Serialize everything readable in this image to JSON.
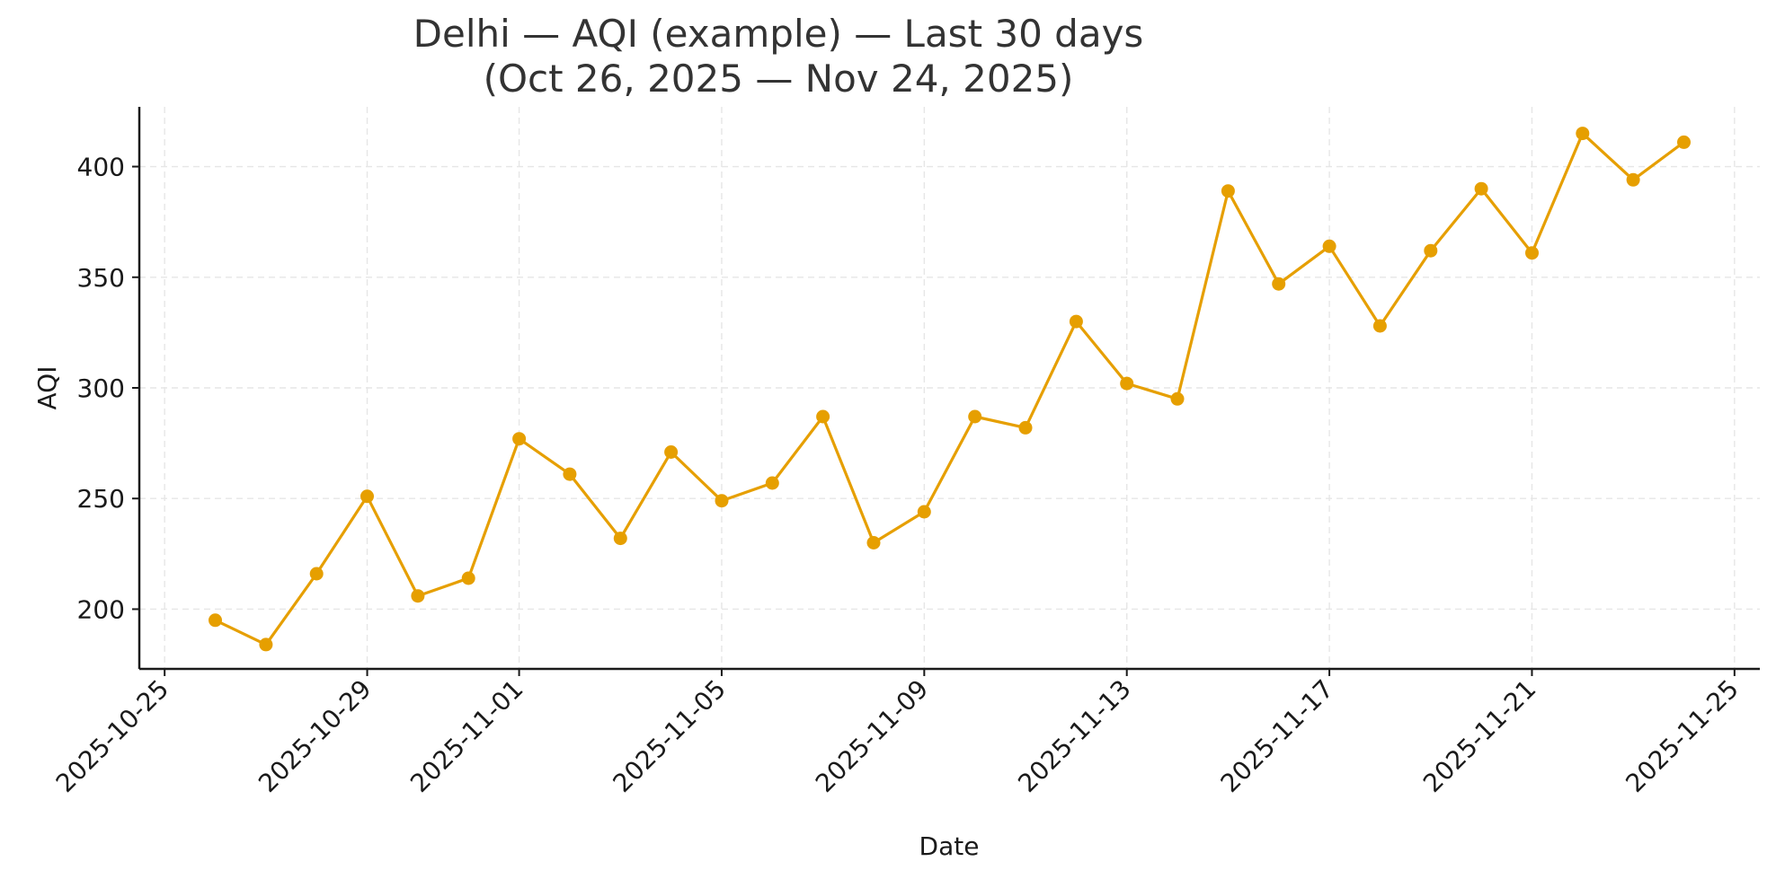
{
  "chart_data": {
    "type": "line",
    "title_line1": "Delhi — AQI (example) — Last 30 days",
    "title_line2": "(Oct 26, 2025 — Nov 24, 2025)",
    "xlabel": "Date",
    "ylabel": "AQI",
    "xlim": [
      "2025-10-24T12:00",
      "2025-11-25T12:00"
    ],
    "ylim": [
      173,
      427
    ],
    "x_ticks": [
      "2025-10-25",
      "2025-10-29",
      "2025-11-01",
      "2025-11-05",
      "2025-11-09",
      "2025-11-13",
      "2025-11-17",
      "2025-11-21",
      "2025-11-25"
    ],
    "y_ticks": [
      200,
      250,
      300,
      350,
      400
    ],
    "grid": true,
    "line_color": "#E69F00",
    "series": [
      {
        "x": [
          "2025-10-26",
          "2025-10-27",
          "2025-10-28",
          "2025-10-29",
          "2025-10-30",
          "2025-10-31",
          "2025-11-01",
          "2025-11-02",
          "2025-11-03",
          "2025-11-04",
          "2025-11-05",
          "2025-11-06",
          "2025-11-07",
          "2025-11-08",
          "2025-11-09",
          "2025-11-10",
          "2025-11-11",
          "2025-11-12",
          "2025-11-13",
          "2025-11-14",
          "2025-11-15",
          "2025-11-16",
          "2025-11-17",
          "2025-11-18",
          "2025-11-19",
          "2025-11-20",
          "2025-11-21",
          "2025-11-22",
          "2025-11-23",
          "2025-11-24"
        ],
        "values": [
          195,
          184,
          216,
          251,
          206,
          214,
          277,
          261,
          232,
          271,
          249,
          257,
          287,
          230,
          244,
          287,
          282,
          330,
          302,
          295,
          389,
          347,
          364,
          328,
          362,
          390,
          361,
          415,
          394,
          411
        ]
      }
    ]
  }
}
